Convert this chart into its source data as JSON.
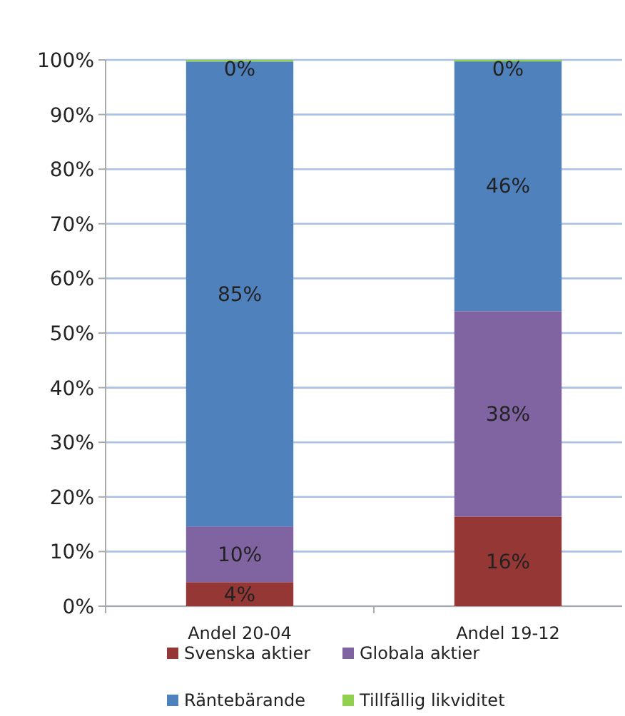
{
  "chart_data": {
    "type": "bar",
    "stacked": true,
    "categories": [
      "Andel 20-04",
      "Andel 19-12"
    ],
    "series": [
      {
        "name": "Svenska aktier",
        "color": "#953735",
        "values": [
          4.4,
          16.4
        ],
        "value_labels": [
          "4%",
          "16%"
        ]
      },
      {
        "name": "Globala aktier",
        "color": "#8064a2",
        "values": [
          10.2,
          37.6
        ],
        "value_labels": [
          "10%",
          "38%"
        ]
      },
      {
        "name": "Räntebärande",
        "color": "#4f81bd",
        "values": [
          85.1,
          46
        ],
        "value_labels": [
          "85%",
          "46%"
        ]
      },
      {
        "name": "Tillfällig likviditet",
        "color": "#92d050",
        "values": [
          0.3,
          0
        ],
        "value_labels": [
          "0%",
          "0%"
        ]
      }
    ],
    "ylim": [
      0,
      100
    ],
    "yticks": [
      {
        "value": 0,
        "label": "0%"
      },
      {
        "value": 10,
        "label": "10%"
      },
      {
        "value": 20,
        "label": "20%"
      },
      {
        "value": 30,
        "label": "30%"
      },
      {
        "value": 40,
        "label": "40%"
      },
      {
        "value": 50,
        "label": "50%"
      },
      {
        "value": 60,
        "label": "60%"
      },
      {
        "value": 70,
        "label": "70%"
      },
      {
        "value": 80,
        "label": "80%"
      },
      {
        "value": 90,
        "label": "90%"
      },
      {
        "value": 100,
        "label": "100%"
      }
    ],
    "grid": "y",
    "legend": "bottom"
  }
}
